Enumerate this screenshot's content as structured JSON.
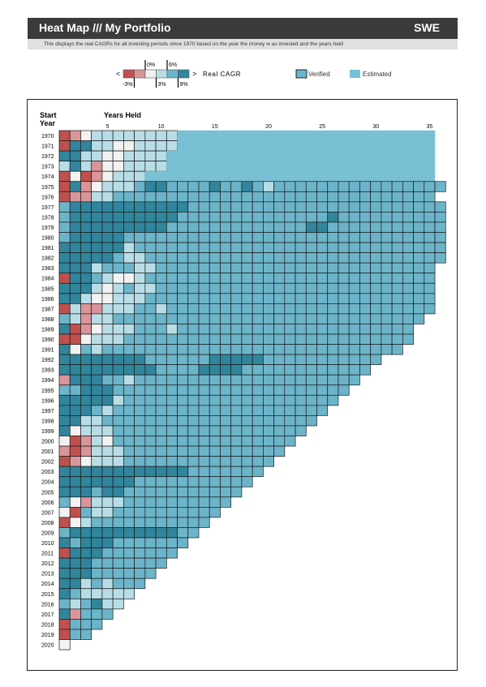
{
  "header": {
    "title": "Heat Map /// My Portfolio",
    "country": "SWE"
  },
  "subtitle": "This displays the real CAGRs for all investing periods since 1970 based on the year the money w as invested and the years held",
  "legend": {
    "scale_label": "Real CAGR",
    "left_arrow": "<",
    "right_arrow": ">",
    "ticks_top": [
      "0%",
      "6%"
    ],
    "ticks_bottom": [
      "-3%",
      "3%",
      "9%"
    ],
    "verified_label": "Verified",
    "estimated_label": "Estimated"
  },
  "colors": {
    "below_-3": "#c0504d",
    "-3_to_0": "#d9959a",
    "0_to_3": "#f2f2f2",
    "3_to_6": "#b9dde6",
    "6_to_9": "#6cb4c9",
    "above_9": "#31859c",
    "estimated": "#79c0d5"
  },
  "chart_data": {
    "type": "heatmap",
    "xlabel": "Years Held",
    "ylabel": "Start\nYear",
    "x_ticks": [
      5,
      10,
      15,
      20,
      25,
      30,
      35
    ],
    "start_years": [
      1970,
      1971,
      1972,
      1973,
      1974,
      1975,
      1976,
      1977,
      1978,
      1979,
      1980,
      1981,
      1982,
      1983,
      1984,
      1985,
      1986,
      1987,
      1988,
      1989,
      1990,
      1991,
      1992,
      1993,
      1994,
      1995,
      1996,
      1997,
      1998,
      1999,
      2000,
      2001,
      2002,
      2003,
      2004,
      2005,
      2006,
      2007,
      2008,
      2009,
      2010,
      2011,
      2012,
      2013,
      2014,
      2015,
      2016,
      2017,
      2018,
      2019,
      2020
    ],
    "max_years_held": 35,
    "legend_key": {
      "R": "below -3%",
      "P": "-3% to 0%",
      "W": "0% to 3%",
      "L": "3% to 6%",
      "M": "6% to 9%",
      "D": "above 9%",
      "E": "estimated"
    },
    "rows": [
      "RPWLLLLLLLLEEEEEEEEEEEEEEEEEEEEEEEE",
      "RDDLLWWLLLLEEEEEEEEEEEEEEEEEEEEEEEE",
      "DDLLWWLLLLEEEEEEEEEEEEEEEEEEEEEEEEE",
      "LDLPWWLLLLEEEEEEEEEEEEEEEEEEEEEEEEE",
      "RWRPWLLLEEEEEEEEEEEEEEEEEEEEEEEEEEE",
      "RDPWLLLMDDMMMMDMMDMLMMMMMMMMMMMMMMMM",
      "RPPLLMMMMMMMMMMMMMMMMMMMMMMMMMMMMMM",
      "MDDDDDDDDDDDMMMMMMMMMMMMMMMMMMMMMMMM",
      "MDDDDDDDDDDMMMMMMMMMMMMMMDMMMMMMMMMM",
      "MDDDDDDDDDMMMMMMMMMMMMMDDMMMMMMMMMMM",
      "MDDDDDMMMMMMMMMMMMMMMMMMMMMMMMMMMMMM",
      "DDDDDDLMMMMMMMMMMMMMMMMMMMMMMMMMMMMM",
      "DDDDDMLLMMMMMMMMMMMMMMMMMMMMMMMMMMMM",
      "DDDLMMMLLMMMMMMMMMMMMMMMMMMMMMMMMMM",
      "RDDMLWWLMMMMMMMMMMMMMMMMMMMMMMMMMMM",
      "DDDLWLMLLMMMMMMMMMMMMMMMMMMMMMMMMMM",
      "DDLWWLLLMMMMMMMMMMMMMMMMMMMMMMMMMMM",
      "RLPPLLLMMLMMMMMMMMMMMMMMMMMMMMMMMMM",
      "MLPLLMMMMMMMMMMMMMMMMMMMMMMMMMMMMM",
      "DRPWLLLMMMLMMMMMMMMMMMMMMMMMMMMMM",
      "RRWLLLMMMMMMMMMMMMMMMMMMMMMMMMMMM",
      "DWMLMMMMMMMMMMMMMMMMMMMMMMMMMMMM",
      "DDDDDDDDMMMMMMDDDDDMMMMMMMMMMM",
      "DDDDDDDDDMMMMDDDDMMMMMMMMMMMM",
      "PDDDMMLMMMMMMMMMMMMMMMMMMMMM",
      "MMDDDMMMMMMMMMMMMMMMMMMMMMM",
      "DDDDDLMMMMMMMMMMMMMMMMMMMM",
      "DDDMLMMMMMMMMMMMMMMMMMMMM",
      "DDLLMMMMMMMMMMMMMMMMMMMM",
      "DWLLLMMMMMMMMMMMMMMMMMM",
      "WRPLWMMMMMMMMMMMMMMMMM",
      "PRPLLLMMMMMMMMMMMMMMM",
      "RPWLLLMMMMMMMMMMMMMM",
      "DDDDDDDDDDDDMMMMMMM",
      "DDDDDDDMMMMMMMMMMM",
      "DDDMDDMMMMMMMMMMM",
      "MWPLLLMMMMMMMMMM",
      "WRMLLMMMMMMMMMM",
      "RWLMMMMMMMMMMM",
      "MDDDDDDDDDDMM",
      "DMDDDMMMMMMM",
      "RDDDMMMMMMM",
      "DDDMMMMMMM",
      "DDDMMMMMM",
      "DDLMLMMM",
      "DMLLLLL",
      "MLMDLL",
      "DPMMM",
      "RMMM",
      "RMM",
      "W"
    ]
  }
}
